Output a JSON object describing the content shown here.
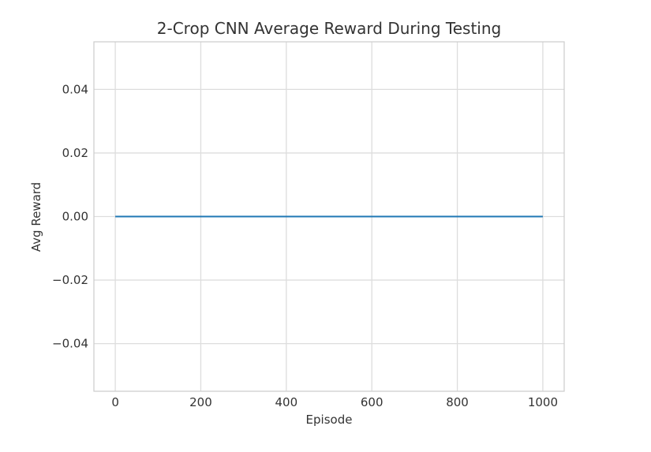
{
  "chart_data": {
    "type": "line",
    "title": "2-Crop CNN Average Reward During Testing",
    "xlabel": "Episode",
    "ylabel": "Avg Reward",
    "xlim": [
      -50,
      1050
    ],
    "ylim": [
      -0.055,
      0.055
    ],
    "x_ticks": [
      0,
      200,
      400,
      600,
      800,
      1000
    ],
    "x_tick_labels": [
      "0",
      "200",
      "400",
      "600",
      "800",
      "1000"
    ],
    "y_ticks": [
      0.04,
      0.02,
      0.0,
      -0.02,
      -0.04
    ],
    "y_tick_labels": [
      "0.04",
      "0.02",
      "0.00",
      "−0.02",
      "−0.04"
    ],
    "grid": true,
    "series": [
      {
        "color": "#1f77b4",
        "x": [
          0,
          1000
        ],
        "y": [
          0.0,
          0.0
        ]
      }
    ]
  }
}
